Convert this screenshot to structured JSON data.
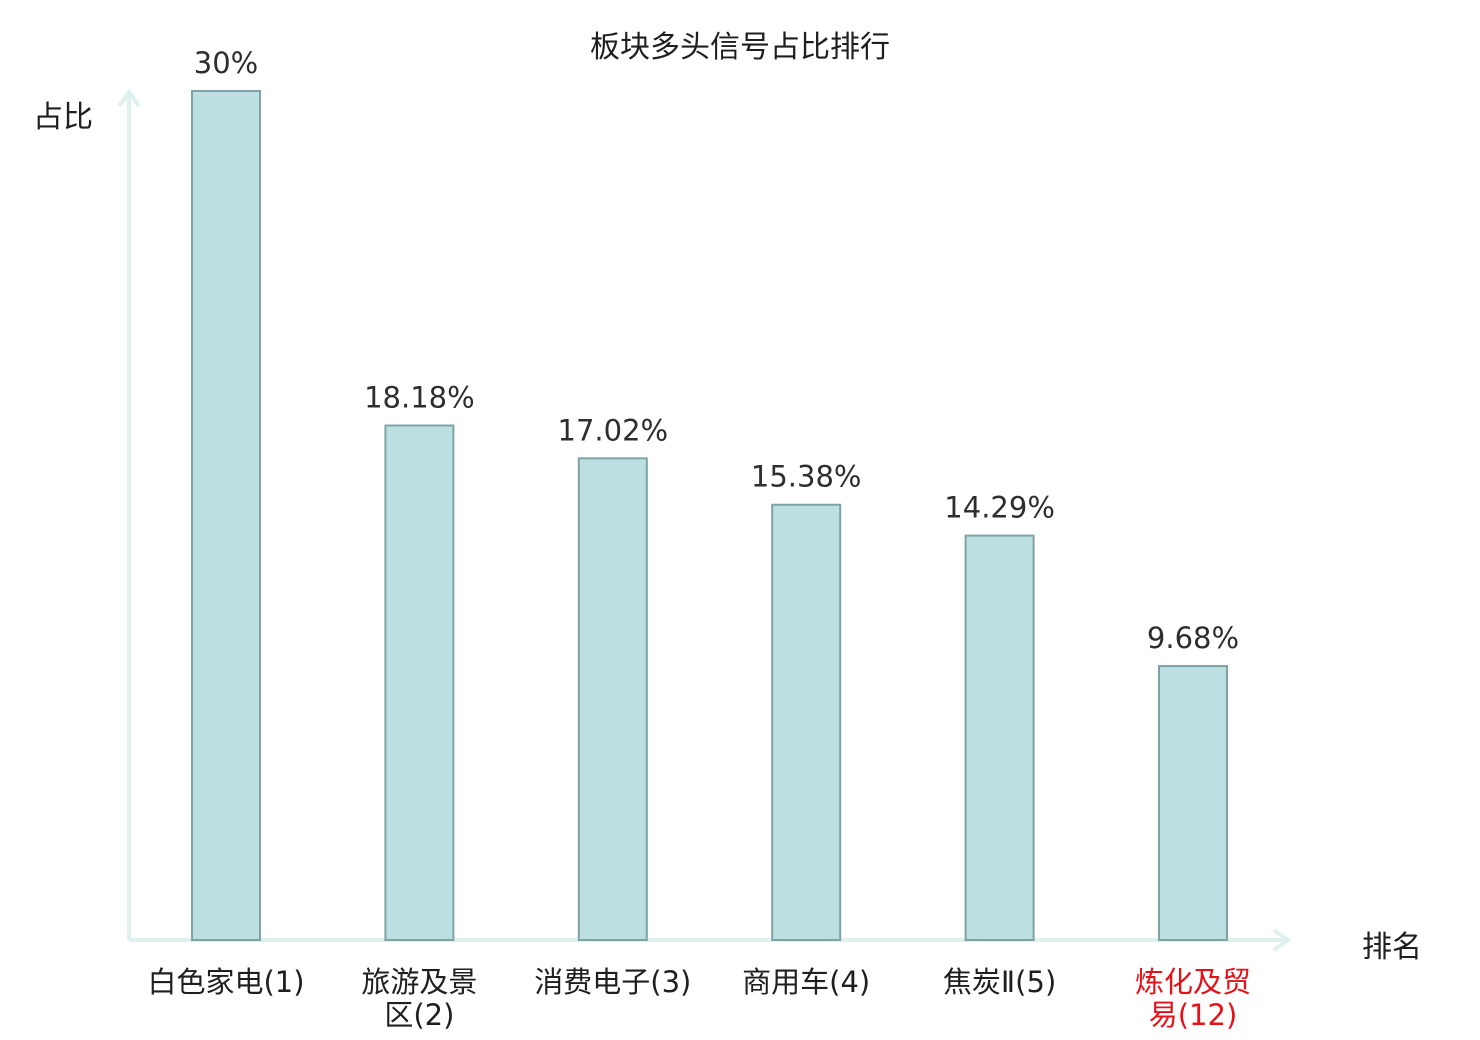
{
  "chart_data": {
    "type": "bar",
    "title": "板块多头信号占比排行",
    "ylabel": "占比",
    "xlabel": "排名",
    "categories": [
      "白色家电(1)",
      "旅游及景区(2)",
      "消费电子(3)",
      "商用车(4)",
      "焦炭Ⅱ(5)",
      "炼化及贸易(12)"
    ],
    "category_lines": [
      [
        "白色家电(1)"
      ],
      [
        "旅游及景",
        "区(2)"
      ],
      [
        "消费电子(3)"
      ],
      [
        "商用车(4)"
      ],
      [
        "焦炭Ⅱ(5)"
      ],
      [
        "炼化及贸",
        "易(12)"
      ]
    ],
    "values": [
      30,
      18.18,
      17.02,
      15.38,
      14.29,
      9.68
    ],
    "value_labels": [
      "30%",
      "18.18%",
      "17.02%",
      "15.38%",
      "14.29%",
      "9.68%"
    ],
    "highlight_index": 5,
    "ylim": [
      0,
      30
    ],
    "grid": false,
    "legend": "none",
    "colors": {
      "bar_fill": "#bce0e2",
      "bar_stroke": "#7fa3a5",
      "axis": "#dff1ef",
      "highlight_text": "#e5121a"
    }
  }
}
